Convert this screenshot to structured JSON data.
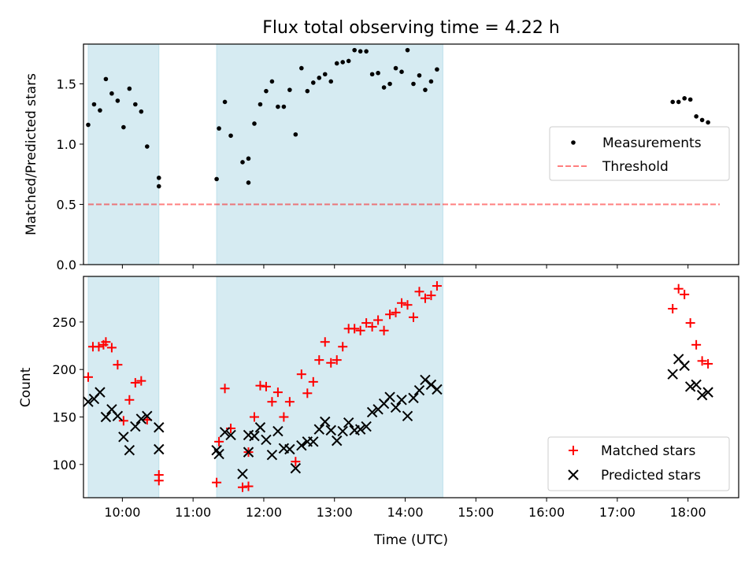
{
  "chart_data": [
    {
      "type": "scatter",
      "title": "Flux total observing time = 4.22 h",
      "xlabel": "",
      "ylabel": "Matched/Predicted stars",
      "x_unit": "time (UTC)",
      "xlim": [
        "09:27",
        "18:43"
      ],
      "ylim": [
        0,
        1.83
      ],
      "yticks": [
        0.0,
        0.5,
        1.0,
        1.5
      ],
      "ytick_labels": [
        "0.0",
        "0.5",
        "1.0",
        "1.5"
      ],
      "shaded_intervals": [
        [
          "09:31",
          "10:31"
        ],
        [
          "11:20",
          "14:32"
        ]
      ],
      "shade_color": "#add8e6",
      "legend_position": "center-right",
      "series": [
        {
          "name": "Measurements",
          "kind": "scatter",
          "marker": "dot",
          "color": "#000000",
          "points": [
            [
              "09:31",
              1.16
            ],
            [
              "09:36",
              1.33
            ],
            [
              "09:41",
              1.28
            ],
            [
              "09:46",
              1.54
            ],
            [
              "09:51",
              1.42
            ],
            [
              "09:56",
              1.36
            ],
            [
              "10:01",
              1.14
            ],
            [
              "10:06",
              1.46
            ],
            [
              "10:11",
              1.33
            ],
            [
              "10:16",
              1.27
            ],
            [
              "10:21",
              0.98
            ],
            [
              "10:31",
              0.72
            ],
            [
              "10:31",
              0.65
            ],
            [
              "11:20",
              0.71
            ],
            [
              "11:22",
              1.13
            ],
            [
              "11:27",
              1.35
            ],
            [
              "11:32",
              1.07
            ],
            [
              "11:42",
              0.85
            ],
            [
              "11:47",
              0.88
            ],
            [
              "11:47",
              0.68
            ],
            [
              "11:52",
              1.17
            ],
            [
              "11:57",
              1.33
            ],
            [
              "12:02",
              1.44
            ],
            [
              "12:07",
              1.52
            ],
            [
              "12:12",
              1.31
            ],
            [
              "12:17",
              1.31
            ],
            [
              "12:22",
              1.45
            ],
            [
              "12:27",
              1.08
            ],
            [
              "12:32",
              1.63
            ],
            [
              "12:37",
              1.44
            ],
            [
              "12:42",
              1.51
            ],
            [
              "12:47",
              1.55
            ],
            [
              "12:52",
              1.58
            ],
            [
              "12:57",
              1.52
            ],
            [
              "13:02",
              1.67
            ],
            [
              "13:07",
              1.68
            ],
            [
              "13:12",
              1.69
            ],
            [
              "13:17",
              1.78
            ],
            [
              "13:22",
              1.77
            ],
            [
              "13:27",
              1.77
            ],
            [
              "13:32",
              1.58
            ],
            [
              "13:37",
              1.59
            ],
            [
              "13:42",
              1.47
            ],
            [
              "13:47",
              1.5
            ],
            [
              "13:52",
              1.63
            ],
            [
              "13:57",
              1.6
            ],
            [
              "14:02",
              1.78
            ],
            [
              "14:07",
              1.5
            ],
            [
              "14:12",
              1.57
            ],
            [
              "14:17",
              1.45
            ],
            [
              "14:22",
              1.52
            ],
            [
              "14:27",
              1.62
            ],
            [
              "17:47",
              1.35
            ],
            [
              "17:52",
              1.35
            ],
            [
              "17:57",
              1.38
            ],
            [
              "18:02",
              1.37
            ],
            [
              "18:07",
              1.23
            ],
            [
              "18:12",
              1.2
            ],
            [
              "18:17",
              1.18
            ]
          ]
        },
        {
          "name": "Threshold",
          "kind": "line",
          "style": "dashed",
          "color": "#ff0000",
          "opacity": 0.5,
          "points": [
            [
              "09:31",
              0.5
            ],
            [
              "18:27",
              0.5
            ]
          ]
        }
      ]
    },
    {
      "type": "scatter",
      "title": "",
      "xlabel": "Time (UTC)",
      "ylabel": "Count",
      "x_unit": "time (UTC)",
      "xlim": [
        "09:27",
        "18:43"
      ],
      "ylim": [
        65,
        298
      ],
      "xticks": [
        "10:00",
        "11:00",
        "12:00",
        "13:00",
        "14:00",
        "15:00",
        "16:00",
        "17:00",
        "18:00"
      ],
      "yticks": [
        100,
        150,
        200,
        250
      ],
      "ytick_labels": [
        "100",
        "150",
        "200",
        "250"
      ],
      "shaded_intervals": [
        [
          "09:31",
          "10:31"
        ],
        [
          "11:20",
          "14:32"
        ]
      ],
      "shade_color": "#add8e6",
      "legend_position": "bottom-right",
      "series": [
        {
          "name": "Matched stars",
          "kind": "scatter",
          "marker": "plus",
          "color": "#ff0000",
          "points": [
            [
              "09:31",
              192
            ],
            [
              "09:35",
              224
            ],
            [
              "09:40",
              224
            ],
            [
              "09:44",
              226
            ],
            [
              "09:46",
              229
            ],
            [
              "09:51",
              223
            ],
            [
              "09:56",
              205
            ],
            [
              "10:01",
              146
            ],
            [
              "10:06",
              168
            ],
            [
              "10:11",
              186
            ],
            [
              "10:16",
              188
            ],
            [
              "10:21",
              147
            ],
            [
              "10:31",
              89
            ],
            [
              "10:31",
              83
            ],
            [
              "11:20",
              81
            ],
            [
              "11:22",
              124
            ],
            [
              "11:27",
              180
            ],
            [
              "11:32",
              138
            ],
            [
              "11:42",
              76
            ],
            [
              "11:47",
              77
            ],
            [
              "11:47",
              113
            ],
            [
              "11:52",
              150
            ],
            [
              "11:57",
              183
            ],
            [
              "12:02",
              182
            ],
            [
              "12:07",
              166
            ],
            [
              "12:12",
              176
            ],
            [
              "12:17",
              150
            ],
            [
              "12:22",
              166
            ],
            [
              "12:27",
              103
            ],
            [
              "12:32",
              195
            ],
            [
              "12:37",
              175
            ],
            [
              "12:42",
              187
            ],
            [
              "12:47",
              210
            ],
            [
              "12:52",
              229
            ],
            [
              "12:57",
              207
            ],
            [
              "13:02",
              210
            ],
            [
              "13:07",
              224
            ],
            [
              "13:12",
              243
            ],
            [
              "13:17",
              243
            ],
            [
              "13:22",
              241
            ],
            [
              "13:27",
              249
            ],
            [
              "13:32",
              245
            ],
            [
              "13:37",
              252
            ],
            [
              "13:42",
              241
            ],
            [
              "13:47",
              258
            ],
            [
              "13:52",
              260
            ],
            [
              "13:57",
              270
            ],
            [
              "14:02",
              268
            ],
            [
              "14:07",
              255
            ],
            [
              "14:12",
              282
            ],
            [
              "14:17",
              275
            ],
            [
              "14:22",
              278
            ],
            [
              "14:27",
              288
            ],
            [
              "17:47",
              264
            ],
            [
              "17:52",
              285
            ],
            [
              "17:57",
              279
            ],
            [
              "18:02",
              249
            ],
            [
              "18:07",
              226
            ],
            [
              "18:12",
              209
            ],
            [
              "18:17",
              206
            ]
          ]
        },
        {
          "name": "Predicted stars",
          "kind": "scatter",
          "marker": "x",
          "color": "#000000",
          "points": [
            [
              "09:31",
              166
            ],
            [
              "09:36",
              169
            ],
            [
              "09:41",
              176
            ],
            [
              "09:46",
              150
            ],
            [
              "09:51",
              158
            ],
            [
              "09:56",
              151
            ],
            [
              "10:01",
              129
            ],
            [
              "10:06",
              115
            ],
            [
              "10:11",
              140
            ],
            [
              "10:16",
              148
            ],
            [
              "10:21",
              151
            ],
            [
              "10:31",
              139
            ],
            [
              "10:31",
              116
            ],
            [
              "11:20",
              115
            ],
            [
              "11:22",
              111
            ],
            [
              "11:27",
              134
            ],
            [
              "11:32",
              131
            ],
            [
              "11:42",
              90
            ],
            [
              "11:47",
              113
            ],
            [
              "11:47",
              131
            ],
            [
              "11:52",
              130
            ],
            [
              "11:57",
              139
            ],
            [
              "12:02",
              126
            ],
            [
              "12:07",
              110
            ],
            [
              "12:12",
              135
            ],
            [
              "12:17",
              117
            ],
            [
              "12:22",
              116
            ],
            [
              "12:27",
              96
            ],
            [
              "12:32",
              120
            ],
            [
              "12:37",
              124
            ],
            [
              "12:42",
              124
            ],
            [
              "12:47",
              137
            ],
            [
              "12:52",
              145
            ],
            [
              "12:57",
              136
            ],
            [
              "13:02",
              125
            ],
            [
              "13:07",
              135
            ],
            [
              "13:12",
              144
            ],
            [
              "13:17",
              136
            ],
            [
              "13:22",
              137
            ],
            [
              "13:27",
              140
            ],
            [
              "13:32",
              155
            ],
            [
              "13:37",
              158
            ],
            [
              "13:42",
              164
            ],
            [
              "13:47",
              171
            ],
            [
              "13:52",
              160
            ],
            [
              "13:57",
              168
            ],
            [
              "14:02",
              151
            ],
            [
              "14:07",
              170
            ],
            [
              "14:12",
              178
            ],
            [
              "14:17",
              189
            ],
            [
              "14:22",
              184
            ],
            [
              "14:27",
              179
            ],
            [
              "17:47",
              195
            ],
            [
              "17:52",
              211
            ],
            [
              "17:57",
              204
            ],
            [
              "18:02",
              182
            ],
            [
              "18:07",
              184
            ],
            [
              "18:12",
              173
            ],
            [
              "18:17",
              176
            ]
          ]
        }
      ]
    }
  ]
}
